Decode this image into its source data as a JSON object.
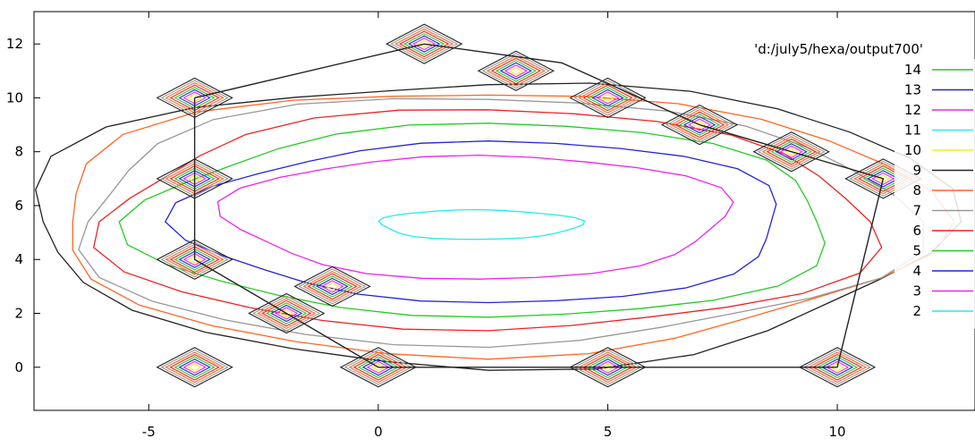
{
  "chart_data": {
    "type": "contour",
    "title": "'d:/july5/hexa/output700'",
    "xlabel": "",
    "ylabel": "",
    "xlim": [
      -7.5,
      13.0
    ],
    "ylim": [
      -1.6,
      13.2
    ],
    "x_ticks": [
      -5,
      0,
      5,
      10
    ],
    "y_ticks": [
      0,
      2,
      4,
      6,
      8,
      10,
      12
    ],
    "grid": false,
    "legend_position": "top-right",
    "legend_entries": [
      {
        "label": "14",
        "color": "#22cc22"
      },
      {
        "label": "13",
        "color": "#2222dd"
      },
      {
        "label": "12",
        "color": "#ee22ee"
      },
      {
        "label": "11",
        "color": "#22eeee"
      },
      {
        "label": "10",
        "color": "#eeee22"
      },
      {
        "label": "9",
        "color": "#222222"
      },
      {
        "label": "8",
        "color": "#ff6622"
      },
      {
        "label": "7",
        "color": "#999999"
      },
      {
        "label": "6",
        "color": "#ee2222"
      },
      {
        "label": "5",
        "color": "#22cc22"
      },
      {
        "label": "4",
        "color": "#2222dd"
      },
      {
        "label": "3",
        "color": "#ee22ee"
      },
      {
        "label": "2",
        "color": "#22eeee"
      }
    ],
    "hexagon_outline": {
      "color": "#222222",
      "points": [
        [
          -4,
          10
        ],
        [
          1,
          12
        ],
        [
          4,
          11.3
        ],
        [
          7,
          9
        ],
        [
          11,
          7
        ],
        [
          10,
          0
        ],
        [
          0,
          0
        ],
        [
          -4,
          4
        ],
        [
          -4,
          10
        ]
      ]
    },
    "central_contours": [
      {
        "level": "9",
        "color": "#222222",
        "cx": 2.4,
        "cy": 5.4,
        "rx": 10.0,
        "ry": 5.3
      },
      {
        "level": "8",
        "color": "#ff6622",
        "cx": 2.4,
        "cy": 5.4,
        "rx": 9.6,
        "ry": 4.9
      },
      {
        "level": "7",
        "color": "#999999",
        "cx": 2.4,
        "cy": 5.4,
        "rx": 9.1,
        "ry": 4.6
      },
      {
        "level": "6",
        "color": "#ee2222",
        "cx": 2.4,
        "cy": 5.4,
        "rx": 8.4,
        "ry": 4.1
      },
      {
        "level": "5",
        "color": "#22cc22",
        "cx": 2.4,
        "cy": 5.4,
        "rx": 7.6,
        "ry": 3.6
      },
      {
        "level": "4",
        "color": "#2222dd",
        "cx": 2.4,
        "cy": 5.4,
        "rx": 6.6,
        "ry": 3.0
      },
      {
        "level": "3",
        "color": "#ee22ee",
        "cx": 2.2,
        "cy": 5.6,
        "rx": 5.5,
        "ry": 2.3
      },
      {
        "level": "2",
        "color": "#22eeee",
        "cx": 2.2,
        "cy": 5.3,
        "rx": 2.2,
        "ry": 0.55
      }
    ],
    "peaks": [
      {
        "x": -4,
        "y": 10
      },
      {
        "x": 1,
        "y": 12
      },
      {
        "x": 3,
        "y": 11
      },
      {
        "x": 5,
        "y": 10
      },
      {
        "x": 7,
        "y": 9
      },
      {
        "x": 9,
        "y": 8
      },
      {
        "x": 11,
        "y": 7
      },
      {
        "x": -4,
        "y": 7
      },
      {
        "x": -4,
        "y": 4
      },
      {
        "x": -1,
        "y": 3
      },
      {
        "x": -2,
        "y": 2
      },
      {
        "x": -4,
        "y": 0
      },
      {
        "x": 0,
        "y": 0
      },
      {
        "x": 10,
        "y": 0
      },
      {
        "x": 5,
        "y": 0
      }
    ]
  }
}
